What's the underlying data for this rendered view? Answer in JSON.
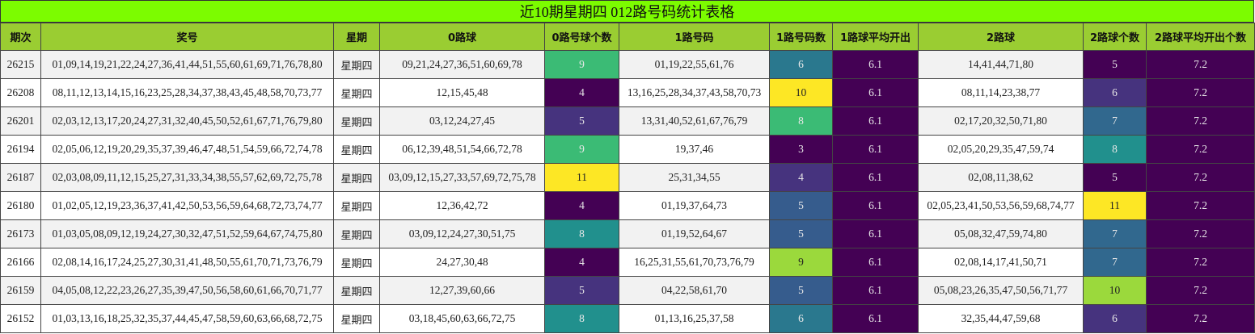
{
  "title": "近10期星期四 012路号码统计表格",
  "colors": {
    "title_bg": "#7cfc00",
    "header_bg": "#9acd32",
    "row_even_bg": "#f2f2f2",
    "row_odd_bg": "#ffffff",
    "scale_dark_purple": "#440154",
    "scale_indigo": "#46337e",
    "scale_blue": "#365c8d",
    "scale_steel": "#2d718e",
    "scale_teal": "#21908d",
    "scale_green": "#3bbb75",
    "scale_lime": "#9bd93c",
    "scale_yellow": "#fde725"
  },
  "columns": [
    "期次",
    "奖号",
    "星期",
    "0路球",
    "0路号球个数",
    "1路号码",
    "1路号码数",
    "1路球平均开出",
    "2路球",
    "2路球个数",
    "2路球平均开出个数"
  ],
  "rows": [
    {
      "issue": "26215",
      "numbers": "01,09,14,19,21,22,24,27,36,41,44,51,55,60,61,69,71,76,78,80",
      "weekday": "星期四",
      "r0": "09,21,24,27,36,51,60,69,78",
      "r0_count": "9",
      "r0_color": "#3bbb75",
      "r1": "01,19,22,55,61,76",
      "r1_count": "6",
      "r1_color": "#2a788e",
      "r1_avg": "6.1",
      "r2": "14,41,44,71,80",
      "r2_count": "5",
      "r2_color": "#440154",
      "r2_avg": "7.2"
    },
    {
      "issue": "26208",
      "numbers": "08,11,12,13,14,15,16,23,25,28,34,37,38,43,45,48,58,70,73,77",
      "weekday": "星期四",
      "r0": "12,15,45,48",
      "r0_count": "4",
      "r0_color": "#440154",
      "r1": "13,16,25,28,34,37,43,58,70,73",
      "r1_count": "10",
      "r1_color": "#fde725",
      "r1_avg": "6.1",
      "r2": "08,11,14,23,38,77",
      "r2_count": "6",
      "r2_color": "#46337e",
      "r2_avg": "7.2"
    },
    {
      "issue": "26201",
      "numbers": "02,03,12,13,17,20,24,27,31,32,40,45,50,52,61,67,71,76,79,80",
      "weekday": "星期四",
      "r0": "03,12,24,27,45",
      "r0_count": "5",
      "r0_color": "#46337e",
      "r1": "13,31,40,52,61,67,76,79",
      "r1_count": "8",
      "r1_color": "#3bbb75",
      "r1_avg": "6.1",
      "r2": "02,17,20,32,50,71,80",
      "r2_count": "7",
      "r2_color": "#31688e",
      "r2_avg": "7.2"
    },
    {
      "issue": "26194",
      "numbers": "02,05,06,12,19,20,29,35,37,39,46,47,48,51,54,59,66,72,74,78",
      "weekday": "星期四",
      "r0": "06,12,39,48,51,54,66,72,78",
      "r0_count": "9",
      "r0_color": "#3bbb75",
      "r1": "19,37,46",
      "r1_count": "3",
      "r1_color": "#440154",
      "r1_avg": "6.1",
      "r2": "02,05,20,29,35,47,59,74",
      "r2_count": "8",
      "r2_color": "#21908d",
      "r2_avg": "7.2"
    },
    {
      "issue": "26187",
      "numbers": "02,03,08,09,11,12,15,25,27,31,33,34,38,55,57,62,69,72,75,78",
      "weekday": "星期四",
      "r0": "03,09,12,15,27,33,57,69,72,75,78",
      "r0_count": "11",
      "r0_color": "#fde725",
      "r1": "25,31,34,55",
      "r1_count": "4",
      "r1_color": "#46337e",
      "r1_avg": "6.1",
      "r2": "02,08,11,38,62",
      "r2_count": "5",
      "r2_color": "#440154",
      "r2_avg": "7.2"
    },
    {
      "issue": "26180",
      "numbers": "01,02,05,12,19,23,36,37,41,42,50,53,56,59,64,68,72,73,74,77",
      "weekday": "星期四",
      "r0": "12,36,42,72",
      "r0_count": "4",
      "r0_color": "#440154",
      "r1": "01,19,37,64,73",
      "r1_count": "5",
      "r1_color": "#365c8d",
      "r1_avg": "6.1",
      "r2": "02,05,23,41,50,53,56,59,68,74,77",
      "r2_count": "11",
      "r2_color": "#fde725",
      "r2_avg": "7.2"
    },
    {
      "issue": "26173",
      "numbers": "01,03,05,08,09,12,19,24,27,30,32,47,51,52,59,64,67,74,75,80",
      "weekday": "星期四",
      "r0": "03,09,12,24,27,30,51,75",
      "r0_count": "8",
      "r0_color": "#21908d",
      "r1": "01,19,52,64,67",
      "r1_count": "5",
      "r1_color": "#365c8d",
      "r1_avg": "6.1",
      "r2": "05,08,32,47,59,74,80",
      "r2_count": "7",
      "r2_color": "#31688e",
      "r2_avg": "7.2"
    },
    {
      "issue": "26166",
      "numbers": "02,08,14,16,17,24,25,27,30,31,41,48,50,55,61,70,71,73,76,79",
      "weekday": "星期四",
      "r0": "24,27,30,48",
      "r0_count": "4",
      "r0_color": "#440154",
      "r1": "16,25,31,55,61,70,73,76,79",
      "r1_count": "9",
      "r1_color": "#9bd93c",
      "r1_avg": "6.1",
      "r2": "02,08,14,17,41,50,71",
      "r2_count": "7",
      "r2_color": "#31688e",
      "r2_avg": "7.2"
    },
    {
      "issue": "26159",
      "numbers": "04,05,08,12,22,23,26,27,35,39,47,50,56,58,60,61,66,70,71,77",
      "weekday": "星期四",
      "r0": "12,27,39,60,66",
      "r0_count": "5",
      "r0_color": "#46337e",
      "r1": "04,22,58,61,70",
      "r1_count": "5",
      "r1_color": "#365c8d",
      "r1_avg": "6.1",
      "r2": "05,08,23,26,35,47,50,56,71,77",
      "r2_count": "10",
      "r2_color": "#9bd93c",
      "r2_avg": "7.2"
    },
    {
      "issue": "26152",
      "numbers": "01,03,13,16,18,25,32,35,37,44,45,47,58,59,60,63,66,68,72,75",
      "weekday": "星期四",
      "r0": "03,18,45,60,63,66,72,75",
      "r0_count": "8",
      "r0_color": "#21908d",
      "r1": "01,13,16,25,37,58",
      "r1_count": "6",
      "r1_color": "#2a788e",
      "r1_avg": "6.1",
      "r2": "32,35,44,47,59,68",
      "r2_count": "6",
      "r2_color": "#46337e",
      "r2_avg": "7.2"
    }
  ]
}
